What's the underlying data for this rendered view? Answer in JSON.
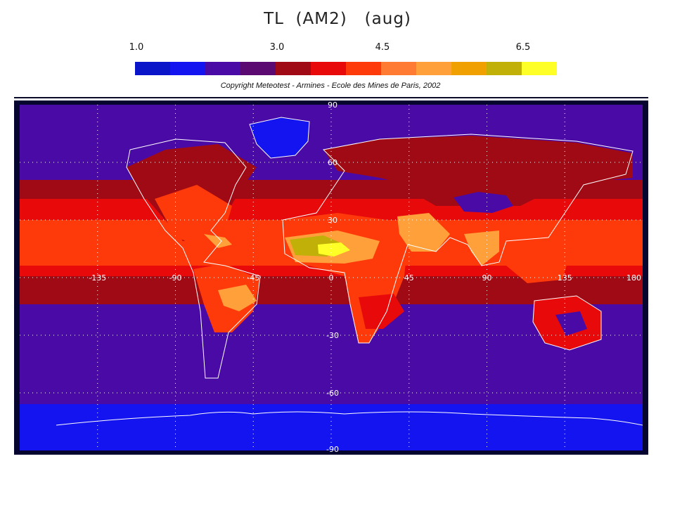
{
  "title": "TL  (AM2)   (aug)",
  "scale": {
    "labels": [
      {
        "text": "1.0",
        "value": 1.0
      },
      {
        "text": "3.0",
        "value": 3.0
      },
      {
        "text": "4.5",
        "value": 4.5
      },
      {
        "text": "6.5",
        "value": 6.5
      }
    ],
    "min": 1.0,
    "max": 7.0,
    "colors": [
      "#0a14c8",
      "#1414f0",
      "#4a0aa6",
      "#5a0a70",
      "#a00a14",
      "#e80a0a",
      "#ff3a0a",
      "#ff7a32",
      "#ffa03a",
      "#f0a000",
      "#c0b008",
      "#ffff28"
    ]
  },
  "copyright": "Copyright Meteotest - Armines - Ecole des Mines de Paris, 2002",
  "map": {
    "projection": "equirectangular",
    "lon_range": [
      -180,
      180
    ],
    "lat_range": [
      -90,
      90
    ],
    "lon_labels": [
      "-135",
      "-90",
      "-45",
      "0",
      "45",
      "90",
      "135",
      "180"
    ],
    "lon_label_values": [
      -135,
      -90,
      -45,
      0,
      45,
      90,
      135,
      180
    ],
    "lat_labels": [
      "90",
      "60",
      "30",
      "-30",
      "-60",
      "-90"
    ],
    "lat_label_values": [
      90,
      60,
      30,
      -30,
      -60,
      -90
    ],
    "grid": true,
    "background_color": "#050530",
    "base_color": "#4a0aa6",
    "band_colors": {
      "deep_blue": "#1414f0",
      "purple": "#4a0aa6",
      "dark_red": "#a00a14",
      "red": "#e80a0a",
      "orange_red": "#ff3a0a",
      "orange": "#ff7a32",
      "light_orange": "#ffa03a",
      "olive": "#c0b008",
      "yellow": "#ffff28",
      "coast": "#ffffff"
    }
  }
}
